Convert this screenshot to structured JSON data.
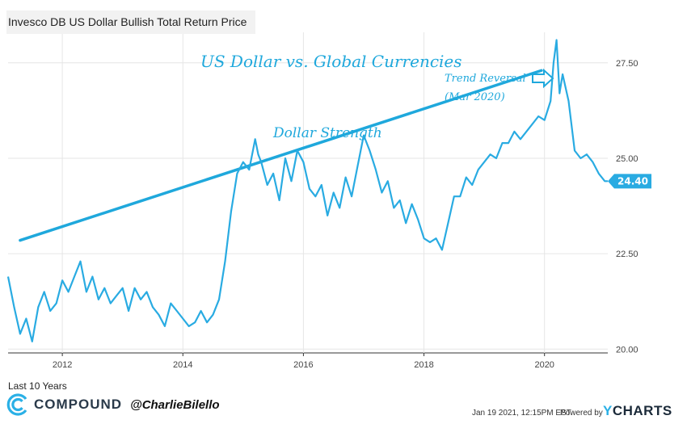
{
  "title": "Invesco DB US Dollar Bullish Total Return Price",
  "period": "Last 10 Years",
  "brand": {
    "name": "COMPOUND",
    "handle": "@CharlieBilello"
  },
  "footer": {
    "timestamp": "Jan 19 2021, 12:15PM EST.",
    "powered_by": "Powered by",
    "provider_y": "Y",
    "provider_rest": "CHARTS"
  },
  "colors": {
    "series": "#29abe2",
    "annotation": "#1fa8dc",
    "grid": "#e6e6e6",
    "last_label_bg": "#29abe2"
  },
  "annotations": {
    "headline": "US Dollar vs. Global Currencies",
    "strength": "Dollar Strength",
    "reversal_line1": "Trend Reversal",
    "reversal_line2": "(Mar 2020)"
  },
  "chart_data": {
    "type": "line",
    "title": "Invesco DB US Dollar Bullish Total Return Price",
    "x_ticks": [
      "2012",
      "2014",
      "2016",
      "2018",
      "2020"
    ],
    "y_ticks": [
      "20.00",
      "22.50",
      "25.00",
      "27.50"
    ],
    "xlim": [
      2011.1,
      2021.05
    ],
    "ylim": [
      19.9,
      28.3
    ],
    "grid": true,
    "last_value_label": "24.40",
    "series": [
      {
        "x": [
          2011.1,
          2011.2,
          2011.3,
          2011.4,
          2011.5,
          2011.6,
          2011.7,
          2011.8,
          2011.9,
          2012.0,
          2012.1,
          2012.2,
          2012.3,
          2012.4,
          2012.5,
          2012.6,
          2012.7,
          2012.8,
          2012.9,
          2013.0,
          2013.1,
          2013.2,
          2013.3,
          2013.4,
          2013.5,
          2013.6,
          2013.7,
          2013.8,
          2013.9,
          2014.0,
          2014.1,
          2014.2,
          2014.3,
          2014.4,
          2014.5,
          2014.6,
          2014.7,
          2014.8,
          2014.9,
          2015.0,
          2015.1,
          2015.2,
          2015.25,
          2015.3,
          2015.4,
          2015.5,
          2015.6,
          2015.7,
          2015.8,
          2015.9,
          2016.0,
          2016.1,
          2016.2,
          2016.3,
          2016.4,
          2016.5,
          2016.6,
          2016.7,
          2016.8,
          2016.9,
          2017.0,
          2017.1,
          2017.2,
          2017.3,
          2017.4,
          2017.5,
          2017.6,
          2017.7,
          2017.8,
          2017.9,
          2018.0,
          2018.1,
          2018.2,
          2018.3,
          2018.4,
          2018.5,
          2018.6,
          2018.7,
          2018.8,
          2018.9,
          2019.0,
          2019.1,
          2019.2,
          2019.3,
          2019.4,
          2019.5,
          2019.6,
          2019.7,
          2019.8,
          2019.9,
          2020.0,
          2020.1,
          2020.15,
          2020.2,
          2020.25,
          2020.3,
          2020.4,
          2020.5,
          2020.6,
          2020.7,
          2020.8,
          2020.9,
          2021.0,
          2021.05
        ],
        "y": [
          21.9,
          21.1,
          20.4,
          20.8,
          20.2,
          21.1,
          21.5,
          21.0,
          21.2,
          21.8,
          21.5,
          21.9,
          22.3,
          21.5,
          21.9,
          21.3,
          21.6,
          21.2,
          21.4,
          21.6,
          21.0,
          21.6,
          21.3,
          21.5,
          21.1,
          20.9,
          20.6,
          21.2,
          21.0,
          20.8,
          20.6,
          20.7,
          21.0,
          20.7,
          20.9,
          21.3,
          22.3,
          23.6,
          24.6,
          24.9,
          24.7,
          25.5,
          25.1,
          24.9,
          24.3,
          24.6,
          23.9,
          25.0,
          24.4,
          25.2,
          24.9,
          24.2,
          24.0,
          24.3,
          23.5,
          24.1,
          23.7,
          24.5,
          24.0,
          24.8,
          25.6,
          25.2,
          24.7,
          24.1,
          24.4,
          23.7,
          23.9,
          23.3,
          23.8,
          23.4,
          22.9,
          22.8,
          22.9,
          22.6,
          23.3,
          24.0,
          24.0,
          24.5,
          24.3,
          24.7,
          24.9,
          25.1,
          25.0,
          25.4,
          25.4,
          25.7,
          25.5,
          25.7,
          25.9,
          26.1,
          26.0,
          26.5,
          27.5,
          28.1,
          26.7,
          27.2,
          26.5,
          25.2,
          25.0,
          25.1,
          24.9,
          24.6,
          24.4,
          24.4
        ]
      }
    ]
  }
}
